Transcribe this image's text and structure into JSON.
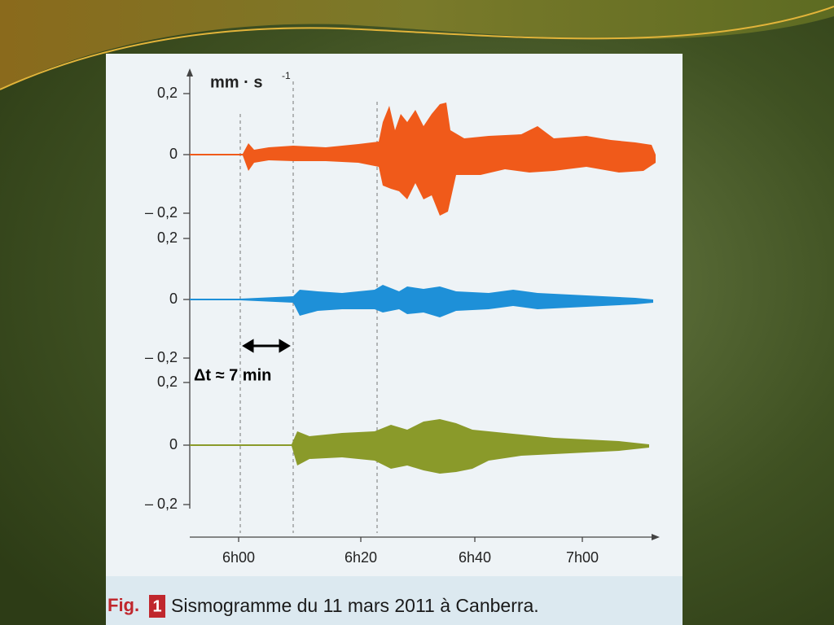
{
  "figure": {
    "unit": "mm · s",
    "unit_exponent": "-1",
    "traces": [
      {
        "ticks": [
          "0,2",
          "0",
          "– 0,2"
        ]
      },
      {
        "ticks": [
          "0,2",
          "0",
          "– 0,2"
        ]
      },
      {
        "ticks": [
          "0,2",
          "0",
          "– 0,2"
        ]
      }
    ],
    "annotation": "Δt ≈ 7 min",
    "time_labels": [
      "6h00",
      "6h20",
      "6h40",
      "7h00"
    ],
    "caption": {
      "label": "Fig.",
      "number": "1",
      "text": "Sismogramme du 11 mars 2011 à Canberra."
    }
  }
}
